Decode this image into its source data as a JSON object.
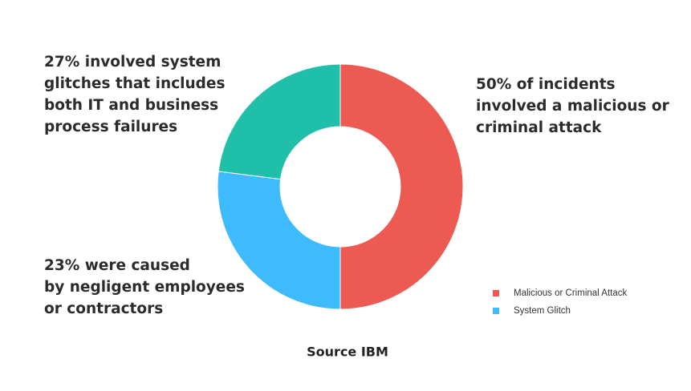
{
  "chart_data": {
    "type": "donut",
    "categories": [
      "Malicious or Criminal Attack",
      "System Glitch",
      null
    ],
    "values": [
      50,
      27,
      23
    ],
    "colors": [
      "#ec5a52",
      "#3dbbfd",
      "#1fbfa9"
    ],
    "annotations": [
      {
        "lines": [
          "50% of incidents",
          "involved a malicious or",
          "criminal attack"
        ]
      },
      {
        "lines": [
          "27% involved system",
          "glitches that includes",
          "both IT and business",
          "process failures"
        ]
      },
      {
        "lines": [
          "23% were caused",
          "by negligent employees",
          "or contractors"
        ]
      }
    ],
    "source": "Source IBM"
  }
}
